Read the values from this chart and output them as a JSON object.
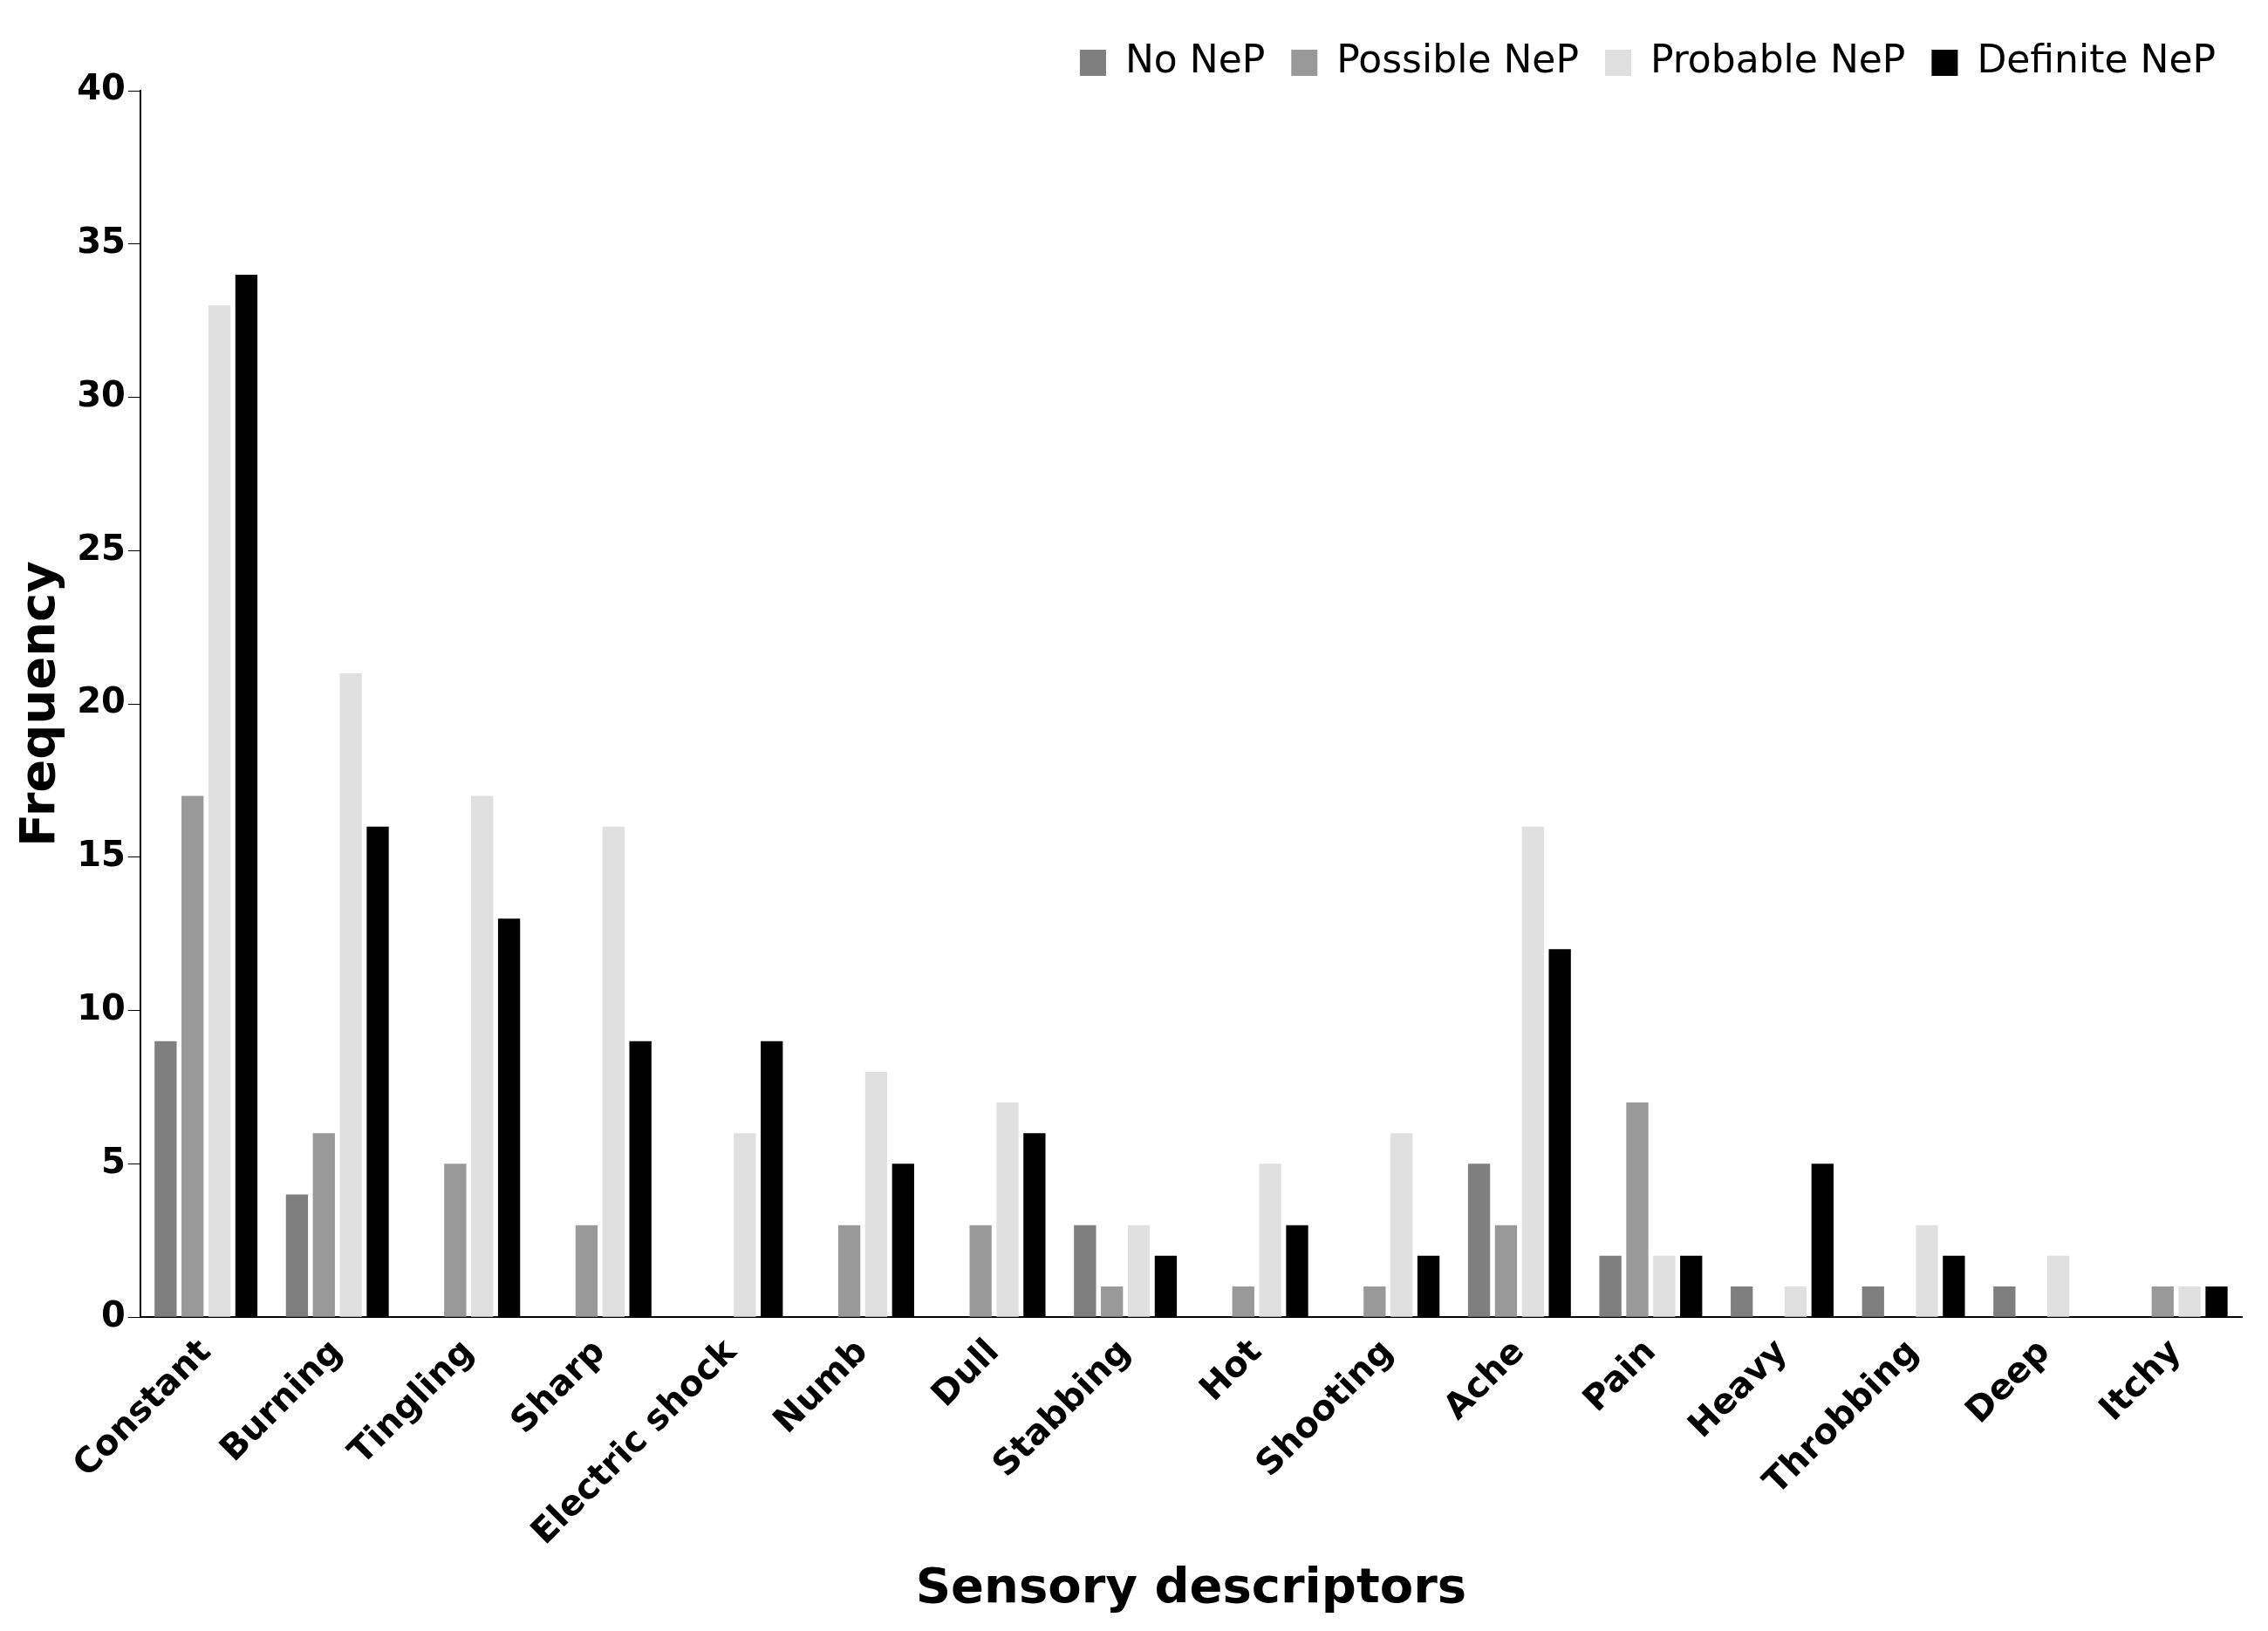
{
  "chart_data": {
    "type": "bar",
    "xlabel": "Sensory descriptors",
    "ylabel": "Frequency",
    "categories": [
      "Constant",
      "Burning",
      "Tingling",
      "Sharp",
      "Electric shock",
      "Numb",
      "Dull",
      "Stabbing",
      "Hot",
      "Shooting",
      "Ache",
      "Pain",
      "Heavy",
      "Throbbing",
      "Deep",
      "Itchy"
    ],
    "series": [
      {
        "name": "No NeP",
        "color": "#7f7f7f",
        "values": [
          9,
          4,
          0,
          0,
          0,
          0,
          0,
          3,
          0,
          0,
          5,
          2,
          1,
          1,
          1,
          0
        ]
      },
      {
        "name": "Possible NeP",
        "color": "#999999",
        "values": [
          17,
          6,
          5,
          3,
          0,
          3,
          3,
          1,
          1,
          1,
          3,
          7,
          0,
          0,
          0,
          1
        ]
      },
      {
        "name": "Probable NeP",
        "color": "#e0e0e0",
        "values": [
          33,
          21,
          17,
          16,
          6,
          8,
          7,
          3,
          5,
          6,
          16,
          2,
          1,
          3,
          2,
          1
        ]
      },
      {
        "name": "Definite NeP",
        "color": "#000000",
        "values": [
          34,
          16,
          13,
          9,
          9,
          5,
          6,
          2,
          3,
          2,
          12,
          2,
          5,
          2,
          0,
          1
        ]
      }
    ],
    "ylim": [
      0,
      40
    ],
    "yticks": [
      0,
      5,
      10,
      15,
      20,
      25,
      30,
      35,
      40
    ],
    "grid": false,
    "legend": "top right"
  }
}
